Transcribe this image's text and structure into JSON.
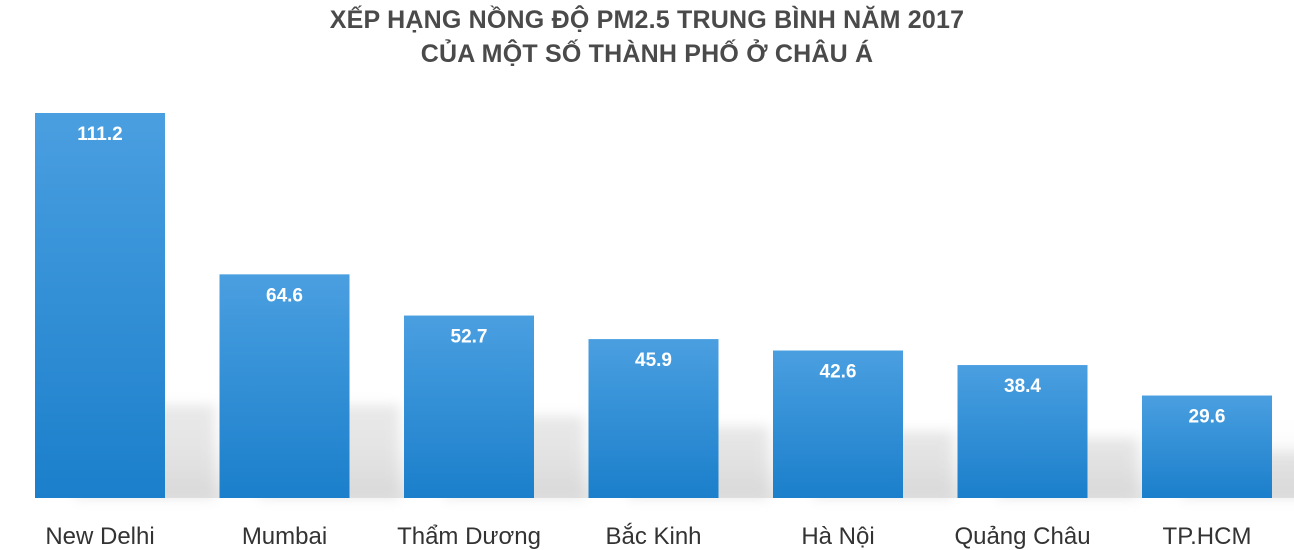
{
  "title": {
    "line1": "XẾP HẠNG NỒNG ĐỘ PM2.5 TRUNG BÌNH NĂM 2017",
    "line2": "CỦA MỘT SỐ THÀNH PHỐ Ở CHÂU Á"
  },
  "colors": {
    "bar_top": "#4a9fe0",
    "bar_bottom": "#1b7fcb",
    "title": "#4a4a4a",
    "floor": "#d9d9d9"
  },
  "chart_data": {
    "type": "bar",
    "title": "XẾP HẠNG NỒNG ĐỘ PM2.5 TRUNG BÌNH NĂM 2017 CỦA MỘT SỐ THÀNH PHỐ Ở CHÂU Á",
    "categories": [
      "New Delhi",
      "Mumbai",
      "Thẩm Dương",
      "Bắc Kinh",
      "Hà Nội",
      "Quảng Châu",
      "TP.HCM"
    ],
    "values": [
      111.2,
      64.6,
      52.7,
      45.9,
      42.6,
      38.4,
      29.6
    ],
    "data_labels": [
      "111.2",
      "64.6",
      "52.7",
      "45.9",
      "42.6",
      "38.4",
      "29.6"
    ],
    "xlabel": "",
    "ylabel": "",
    "ylim": [
      0,
      111.2
    ],
    "grid": false,
    "legend": "none"
  }
}
